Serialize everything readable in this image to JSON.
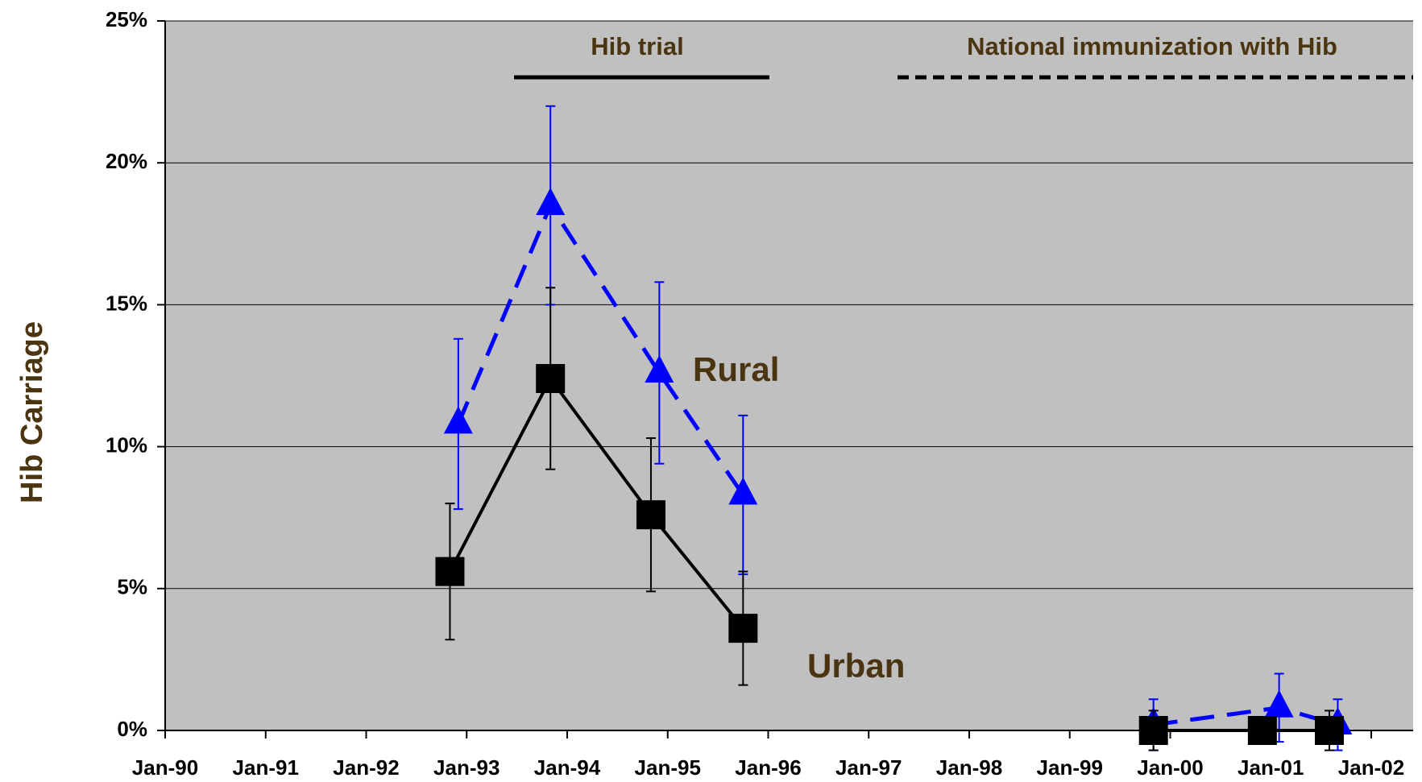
{
  "chart_data": {
    "type": "line",
    "y_label": "Hib Carriage",
    "annotations": [
      "Hib trial",
      "National immunization with Hib",
      "Rural",
      "Urban"
    ],
    "xlim": [
      "1990-01",
      "2002-06"
    ],
    "xticks": [
      {
        "value": "1990-01",
        "label": "Jan-90"
      },
      {
        "value": "1991-01",
        "label": "Jan-91"
      },
      {
        "value": "1992-01",
        "label": "Jan-92"
      },
      {
        "value": "1993-01",
        "label": "Jan-93"
      },
      {
        "value": "1994-01",
        "label": "Jan-94"
      },
      {
        "value": "1995-01",
        "label": "Jan-95"
      },
      {
        "value": "1996-01",
        "label": "Jan-96"
      },
      {
        "value": "1997-01",
        "label": "Jan-97"
      },
      {
        "value": "1998-01",
        "label": "Jan-98"
      },
      {
        "value": "1999-01",
        "label": "Jan-99"
      },
      {
        "value": "2000-01",
        "label": "Jan-00"
      },
      {
        "value": "2001-01",
        "label": "Jan-01"
      },
      {
        "value": "2002-01",
        "label": "Jan-02"
      }
    ],
    "ylim": [
      0,
      25
    ],
    "yticks": [
      {
        "value": 0,
        "label": "0%"
      },
      {
        "value": 5,
        "label": "5%"
      },
      {
        "value": 10,
        "label": "10%"
      },
      {
        "value": 15,
        "label": "15%"
      },
      {
        "value": 20,
        "label": "20%"
      },
      {
        "value": 25,
        "label": "25%"
      }
    ],
    "grid": true,
    "series": [
      {
        "name": "Rural",
        "color": "#0000ff",
        "marker": "triangle",
        "dashed": true,
        "x": [
          "1992-12",
          "1993-11",
          "1994-12",
          "1995-10",
          null,
          "1999-11",
          "2001-02",
          "2001-09"
        ],
        "values": [
          10.8,
          18.5,
          12.6,
          8.3,
          null,
          0.2,
          0.8,
          0.2
        ],
        "errors": [
          3.0,
          3.5,
          3.2,
          2.8,
          null,
          0.9,
          1.2,
          0.9
        ]
      },
      {
        "name": "Urban",
        "color": "#000000",
        "marker": "square",
        "dashed": false,
        "x": [
          "1992-11",
          "1993-11",
          "1994-11",
          "1995-10",
          null,
          "1999-11",
          "2000-12",
          "2001-08"
        ],
        "values": [
          5.6,
          12.4,
          7.6,
          3.6,
          null,
          0,
          0,
          0
        ],
        "errors": [
          2.4,
          3.2,
          2.7,
          2.0,
          null,
          0.7,
          0.4,
          0.7
        ]
      }
    ]
  }
}
